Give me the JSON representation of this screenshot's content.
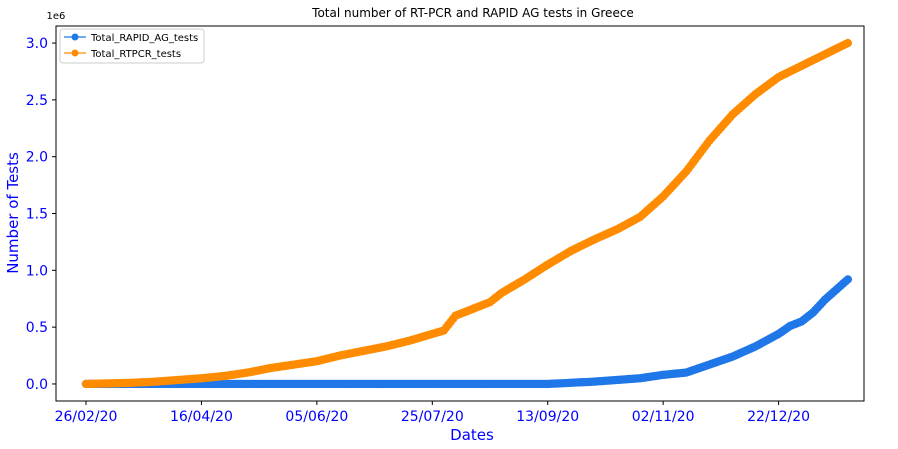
{
  "chart_data": {
    "type": "line",
    "title": "Total number of RT-PCR and RAPID AG tests in Greece",
    "xlabel": "Dates",
    "ylabel": "Number of Tests",
    "y_offset_label": "1e6",
    "ylim": [
      -0.15,
      3.15
    ],
    "xlim": [
      -13,
      337
    ],
    "y_ticks": [
      0.0,
      0.5,
      1.0,
      1.5,
      2.0,
      2.5,
      3.0
    ],
    "y_tick_labels": [
      "0.0",
      "0.5",
      "1.0",
      "1.5",
      "2.0",
      "2.5",
      "3.0"
    ],
    "x_ticks": [
      0,
      50,
      100,
      150,
      200,
      250,
      300
    ],
    "x_tick_labels": [
      "26/02/20",
      "16/04/20",
      "05/06/20",
      "25/07/20",
      "13/09/20",
      "02/11/20",
      "22/12/20"
    ],
    "label_color": "#0000ff",
    "legend_position": "top-left",
    "series": [
      {
        "name": "Total_RAPID_AG_tests",
        "color": "#1f77e8",
        "points": [
          [
            0,
            0
          ],
          [
            100,
            0
          ],
          [
            200,
            0.0
          ],
          [
            210,
            0.01
          ],
          [
            220,
            0.02
          ],
          [
            230,
            0.035
          ],
          [
            240,
            0.05
          ],
          [
            250,
            0.08
          ],
          [
            260,
            0.1
          ],
          [
            270,
            0.17
          ],
          [
            280,
            0.24
          ],
          [
            290,
            0.33
          ],
          [
            300,
            0.44
          ],
          [
            305,
            0.51
          ],
          [
            310,
            0.55
          ],
          [
            315,
            0.63
          ],
          [
            320,
            0.74
          ],
          [
            325,
            0.83
          ],
          [
            330,
            0.92
          ]
        ]
      },
      {
        "name": "Total_RTPCR_tests",
        "color": "#ff8c00",
        "points": [
          [
            0,
            0
          ],
          [
            10,
            0.005
          ],
          [
            20,
            0.01
          ],
          [
            30,
            0.02
          ],
          [
            40,
            0.035
          ],
          [
            50,
            0.05
          ],
          [
            60,
            0.07
          ],
          [
            70,
            0.1
          ],
          [
            80,
            0.14
          ],
          [
            90,
            0.17
          ],
          [
            100,
            0.2
          ],
          [
            110,
            0.25
          ],
          [
            120,
            0.29
          ],
          [
            130,
            0.33
          ],
          [
            140,
            0.38
          ],
          [
            150,
            0.44
          ],
          [
            155,
            0.47
          ],
          [
            160,
            0.6
          ],
          [
            170,
            0.68
          ],
          [
            175,
            0.72
          ],
          [
            180,
            0.8
          ],
          [
            190,
            0.92
          ],
          [
            200,
            1.05
          ],
          [
            210,
            1.17
          ],
          [
            220,
            1.27
          ],
          [
            230,
            1.36
          ],
          [
            240,
            1.47
          ],
          [
            250,
            1.65
          ],
          [
            260,
            1.87
          ],
          [
            270,
            2.14
          ],
          [
            280,
            2.37
          ],
          [
            290,
            2.55
          ],
          [
            300,
            2.7
          ],
          [
            310,
            2.8
          ],
          [
            320,
            2.9
          ],
          [
            330,
            3.0
          ]
        ]
      }
    ]
  }
}
